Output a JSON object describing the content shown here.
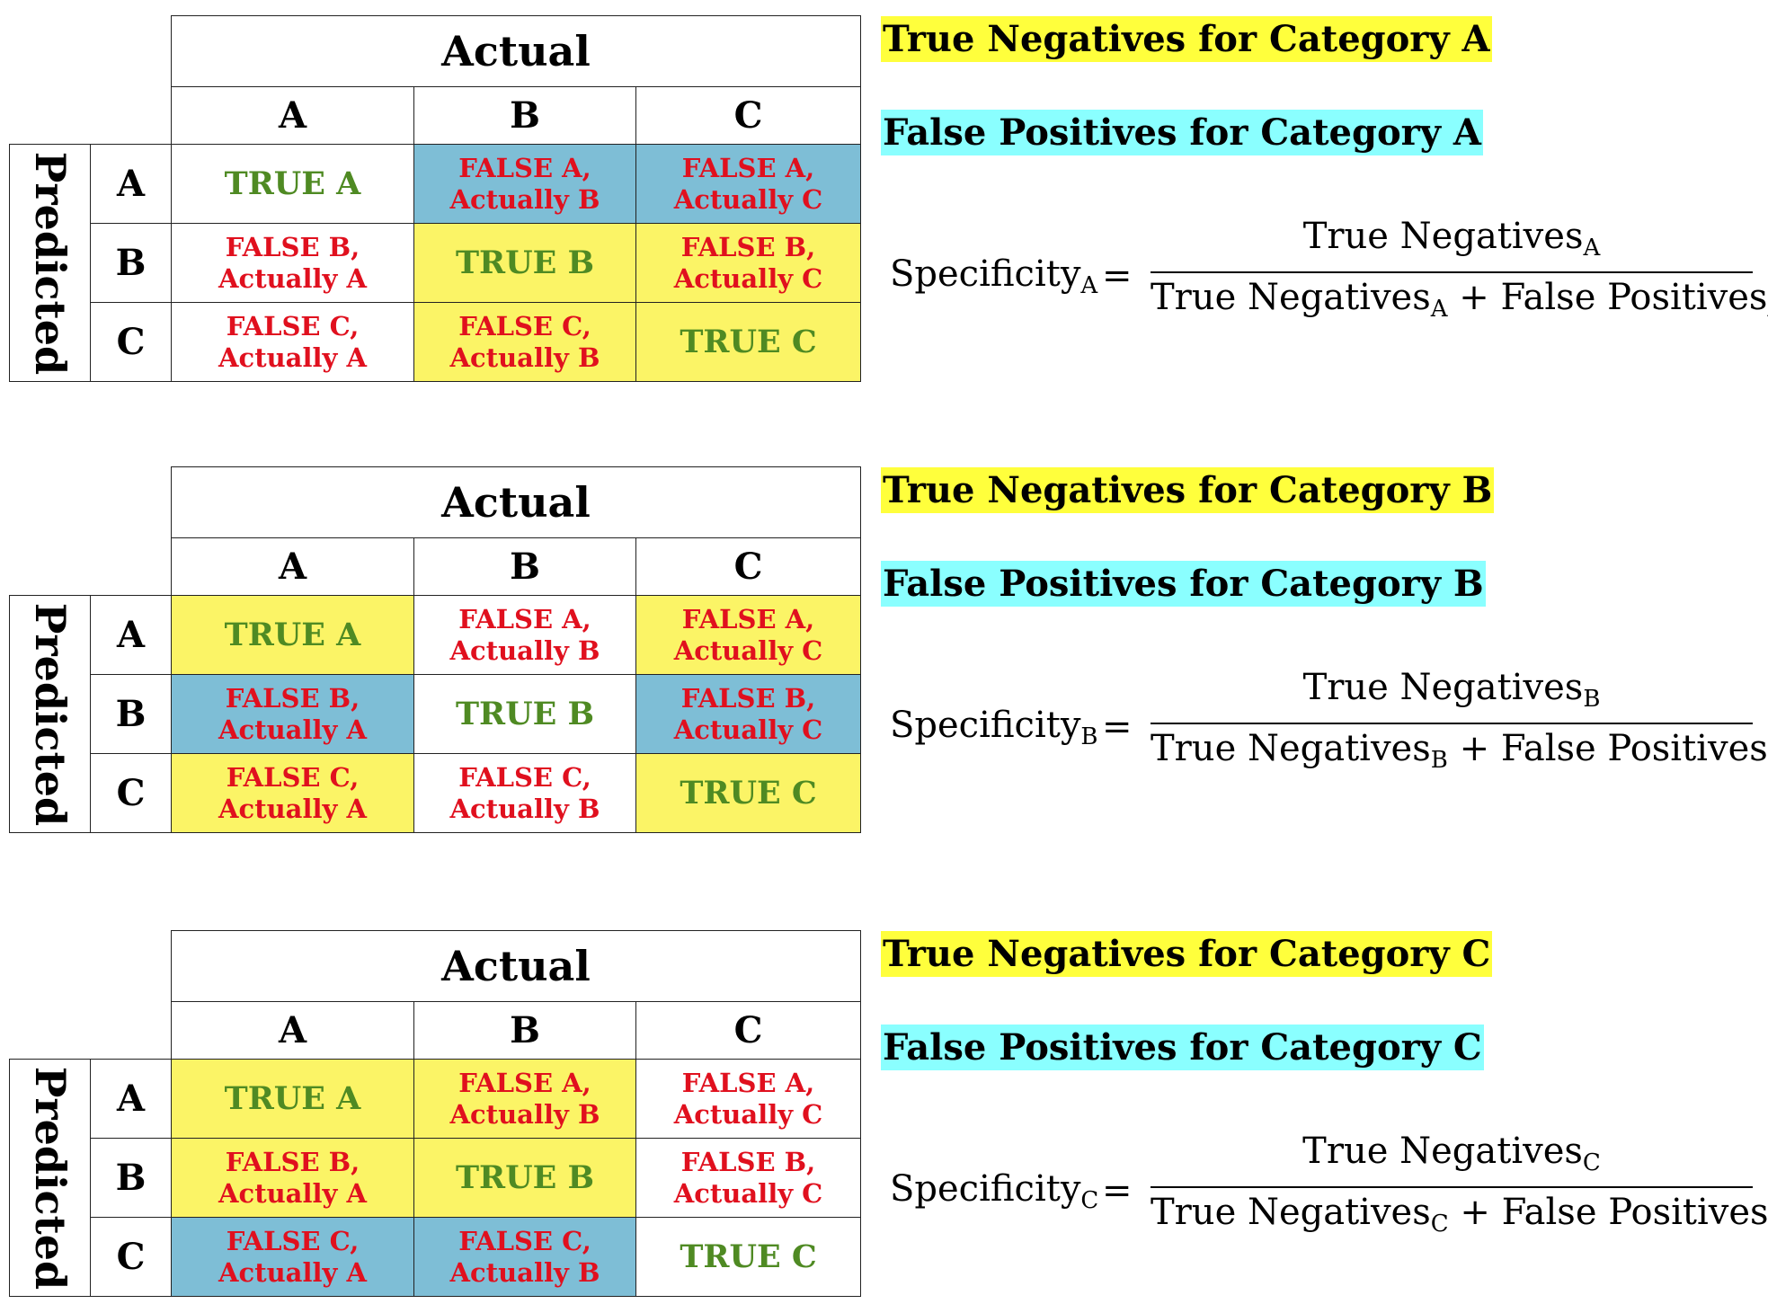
{
  "blocks": [
    {
      "actual_label": "Actual",
      "predicted_label": "Predicted",
      "col_headers": [
        "A",
        "B",
        "C"
      ],
      "row_headers": [
        "A",
        "B",
        "C"
      ],
      "rows": [
        [
          {
            "line1": "TRUE A",
            "line2": "",
            "kind": "true",
            "fill": "white"
          },
          {
            "line1": "FALSE A,",
            "line2": "Actually B",
            "kind": "false",
            "fill": "blue"
          },
          {
            "line1": "FALSE A,",
            "line2": "Actually C",
            "kind": "false",
            "fill": "blue"
          }
        ],
        [
          {
            "line1": "FALSE B,",
            "line2": "Actually A",
            "kind": "false",
            "fill": "white"
          },
          {
            "line1": "TRUE B",
            "line2": "",
            "kind": "true",
            "fill": "yellow"
          },
          {
            "line1": "FALSE B,",
            "line2": "Actually C",
            "kind": "false",
            "fill": "yellow"
          }
        ],
        [
          {
            "line1": "FALSE C,",
            "line2": "Actually A",
            "kind": "false",
            "fill": "white"
          },
          {
            "line1": "FALSE C,",
            "line2": "Actually B",
            "kind": "false",
            "fill": "yellow"
          },
          {
            "line1": "TRUE C",
            "line2": "",
            "kind": "true",
            "fill": "yellow"
          }
        ]
      ],
      "legend_tn": "True Negatives for Category A",
      "legend_fp": "False Positives for Category A",
      "formula": {
        "lhs": "Specificity",
        "sub": "A",
        "equals": "=",
        "num": "True Negatives",
        "den_a": "True Negatives",
        "plus": "+",
        "den_b": "False Positives"
      }
    },
    {
      "actual_label": "Actual",
      "predicted_label": "Predicted",
      "col_headers": [
        "A",
        "B",
        "C"
      ],
      "row_headers": [
        "A",
        "B",
        "C"
      ],
      "rows": [
        [
          {
            "line1": "TRUE A",
            "line2": "",
            "kind": "true",
            "fill": "yellow"
          },
          {
            "line1": "FALSE A,",
            "line2": "Actually B",
            "kind": "false",
            "fill": "white"
          },
          {
            "line1": "FALSE A,",
            "line2": "Actually C",
            "kind": "false",
            "fill": "yellow"
          }
        ],
        [
          {
            "line1": "FALSE B,",
            "line2": "Actually A",
            "kind": "false",
            "fill": "blue"
          },
          {
            "line1": "TRUE B",
            "line2": "",
            "kind": "true",
            "fill": "white"
          },
          {
            "line1": "FALSE B,",
            "line2": "Actually C",
            "kind": "false",
            "fill": "blue"
          }
        ],
        [
          {
            "line1": "FALSE C,",
            "line2": "Actually A",
            "kind": "false",
            "fill": "yellow"
          },
          {
            "line1": "FALSE C,",
            "line2": "Actually B",
            "kind": "false",
            "fill": "white"
          },
          {
            "line1": "TRUE C",
            "line2": "",
            "kind": "true",
            "fill": "yellow"
          }
        ]
      ],
      "legend_tn": "True Negatives for Category B",
      "legend_fp": "False Positives for Category B",
      "formula": {
        "lhs": "Specificity",
        "sub": "B",
        "equals": "=",
        "num": "True Negatives",
        "den_a": "True Negatives",
        "plus": "+",
        "den_b": "False Positives"
      }
    },
    {
      "actual_label": "Actual",
      "predicted_label": "Predicted",
      "col_headers": [
        "A",
        "B",
        "C"
      ],
      "row_headers": [
        "A",
        "B",
        "C"
      ],
      "rows": [
        [
          {
            "line1": "TRUE A",
            "line2": "",
            "kind": "true",
            "fill": "yellow"
          },
          {
            "line1": "FALSE A,",
            "line2": "Actually B",
            "kind": "false",
            "fill": "yellow"
          },
          {
            "line1": "FALSE A,",
            "line2": "Actually C",
            "kind": "false",
            "fill": "white"
          }
        ],
        [
          {
            "line1": "FALSE B,",
            "line2": "Actually A",
            "kind": "false",
            "fill": "yellow"
          },
          {
            "line1": "TRUE B",
            "line2": "",
            "kind": "true",
            "fill": "yellow"
          },
          {
            "line1": "FALSE B,",
            "line2": "Actually C",
            "kind": "false",
            "fill": "white"
          }
        ],
        [
          {
            "line1": "FALSE C,",
            "line2": "Actually A",
            "kind": "false",
            "fill": "blue"
          },
          {
            "line1": "FALSE C,",
            "line2": "Actually B",
            "kind": "false",
            "fill": "blue"
          },
          {
            "line1": "TRUE C",
            "line2": "",
            "kind": "true",
            "fill": "white"
          }
        ]
      ],
      "legend_tn": "True Negatives for Category C",
      "legend_fp": "False Positives for Category C",
      "formula": {
        "lhs": "Specificity",
        "sub": "C",
        "equals": "=",
        "num": "True Negatives",
        "den_a": "True Negatives",
        "plus": "+",
        "den_b": "False Positives"
      }
    }
  ],
  "colors": {
    "yellow_fill": "#fbf466",
    "blue_fill": "#7ebed6",
    "true_text": "#4f8a23",
    "false_text": "#e0101e",
    "tn_highlight": "#ffff3c",
    "fp_highlight": "#8affff"
  }
}
